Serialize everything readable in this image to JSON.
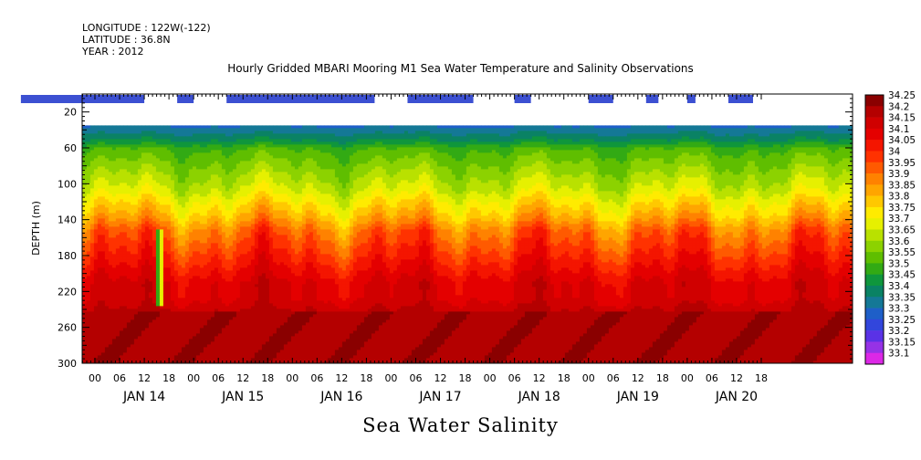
{
  "header": {
    "longitude": "LONGITUDE : 122W(-122)",
    "latitude": "LATITUDE : 36.8N",
    "year": "YEAR : 2012"
  },
  "chart_data": {
    "type": "heatmap",
    "title": "Hourly Gridded MBARI Mooring M1 Sea Water Temperature and Salinity Observations",
    "xlabel": "Sea Water Salinity",
    "ylabel": "DEPTH (m)",
    "y_ticks": [
      20,
      60,
      100,
      140,
      180,
      220,
      260,
      300
    ],
    "ylim": [
      300,
      0
    ],
    "x_hour_labels": [
      "00",
      "06",
      "12",
      "18",
      "00",
      "06",
      "12",
      "18",
      "00",
      "06",
      "12",
      "18",
      "00",
      "06",
      "12",
      "18",
      "00",
      "06",
      "12",
      "18",
      "00",
      "06",
      "12",
      "18",
      "00",
      "06",
      "12",
      "18"
    ],
    "x_day_labels": [
      "JAN 14",
      "JAN 15",
      "JAN 16",
      "JAN 17",
      "JAN 18",
      "JAN 19",
      "JAN 20"
    ],
    "colorbar_levels": [
      "34.25",
      "34.2",
      "34.15",
      "34.1",
      "34.05",
      "34",
      "33.95",
      "33.9",
      "33.85",
      "33.8",
      "33.75",
      "33.7",
      "33.65",
      "33.6",
      "33.55",
      "33.5",
      "33.45",
      "33.4",
      "33.35",
      "33.3",
      "33.25",
      "33.2",
      "33.15",
      "33.1"
    ],
    "colorbar_colors": [
      "#8a0000",
      "#b40000",
      "#d00000",
      "#e40000",
      "#f41500",
      "#ff3200",
      "#ff5a00",
      "#ff8200",
      "#ffa500",
      "#ffc800",
      "#ffeb00",
      "#e6f000",
      "#b9e100",
      "#8cd200",
      "#5fbe00",
      "#32aa14",
      "#0f963c",
      "#0a8264",
      "#147896",
      "#1e5fc8",
      "#3246dc",
      "#5a32e6",
      "#9632e6",
      "#dc28e6"
    ],
    "surface_bar_segments_hours": [
      [
        -18,
        12
      ],
      [
        20,
        24
      ],
      [
        32,
        68
      ],
      [
        76,
        92
      ],
      [
        102,
        106
      ],
      [
        120,
        126
      ],
      [
        134,
        137
      ],
      [
        144,
        146
      ],
      [
        154,
        160
      ]
    ],
    "surface_bar_color": "#3c50d2",
    "salinity_profile": {
      "depth_m": [
        35,
        50,
        60,
        75,
        90,
        105,
        120,
        135,
        150,
        165,
        180,
        195,
        210,
        225,
        240,
        260,
        300
      ],
      "salinity": [
        33.35,
        33.45,
        33.55,
        33.6,
        33.65,
        33.7,
        33.78,
        33.85,
        33.95,
        34.0,
        34.05,
        34.1,
        34.15,
        34.15,
        34.2,
        34.2,
        34.2
      ]
    }
  }
}
